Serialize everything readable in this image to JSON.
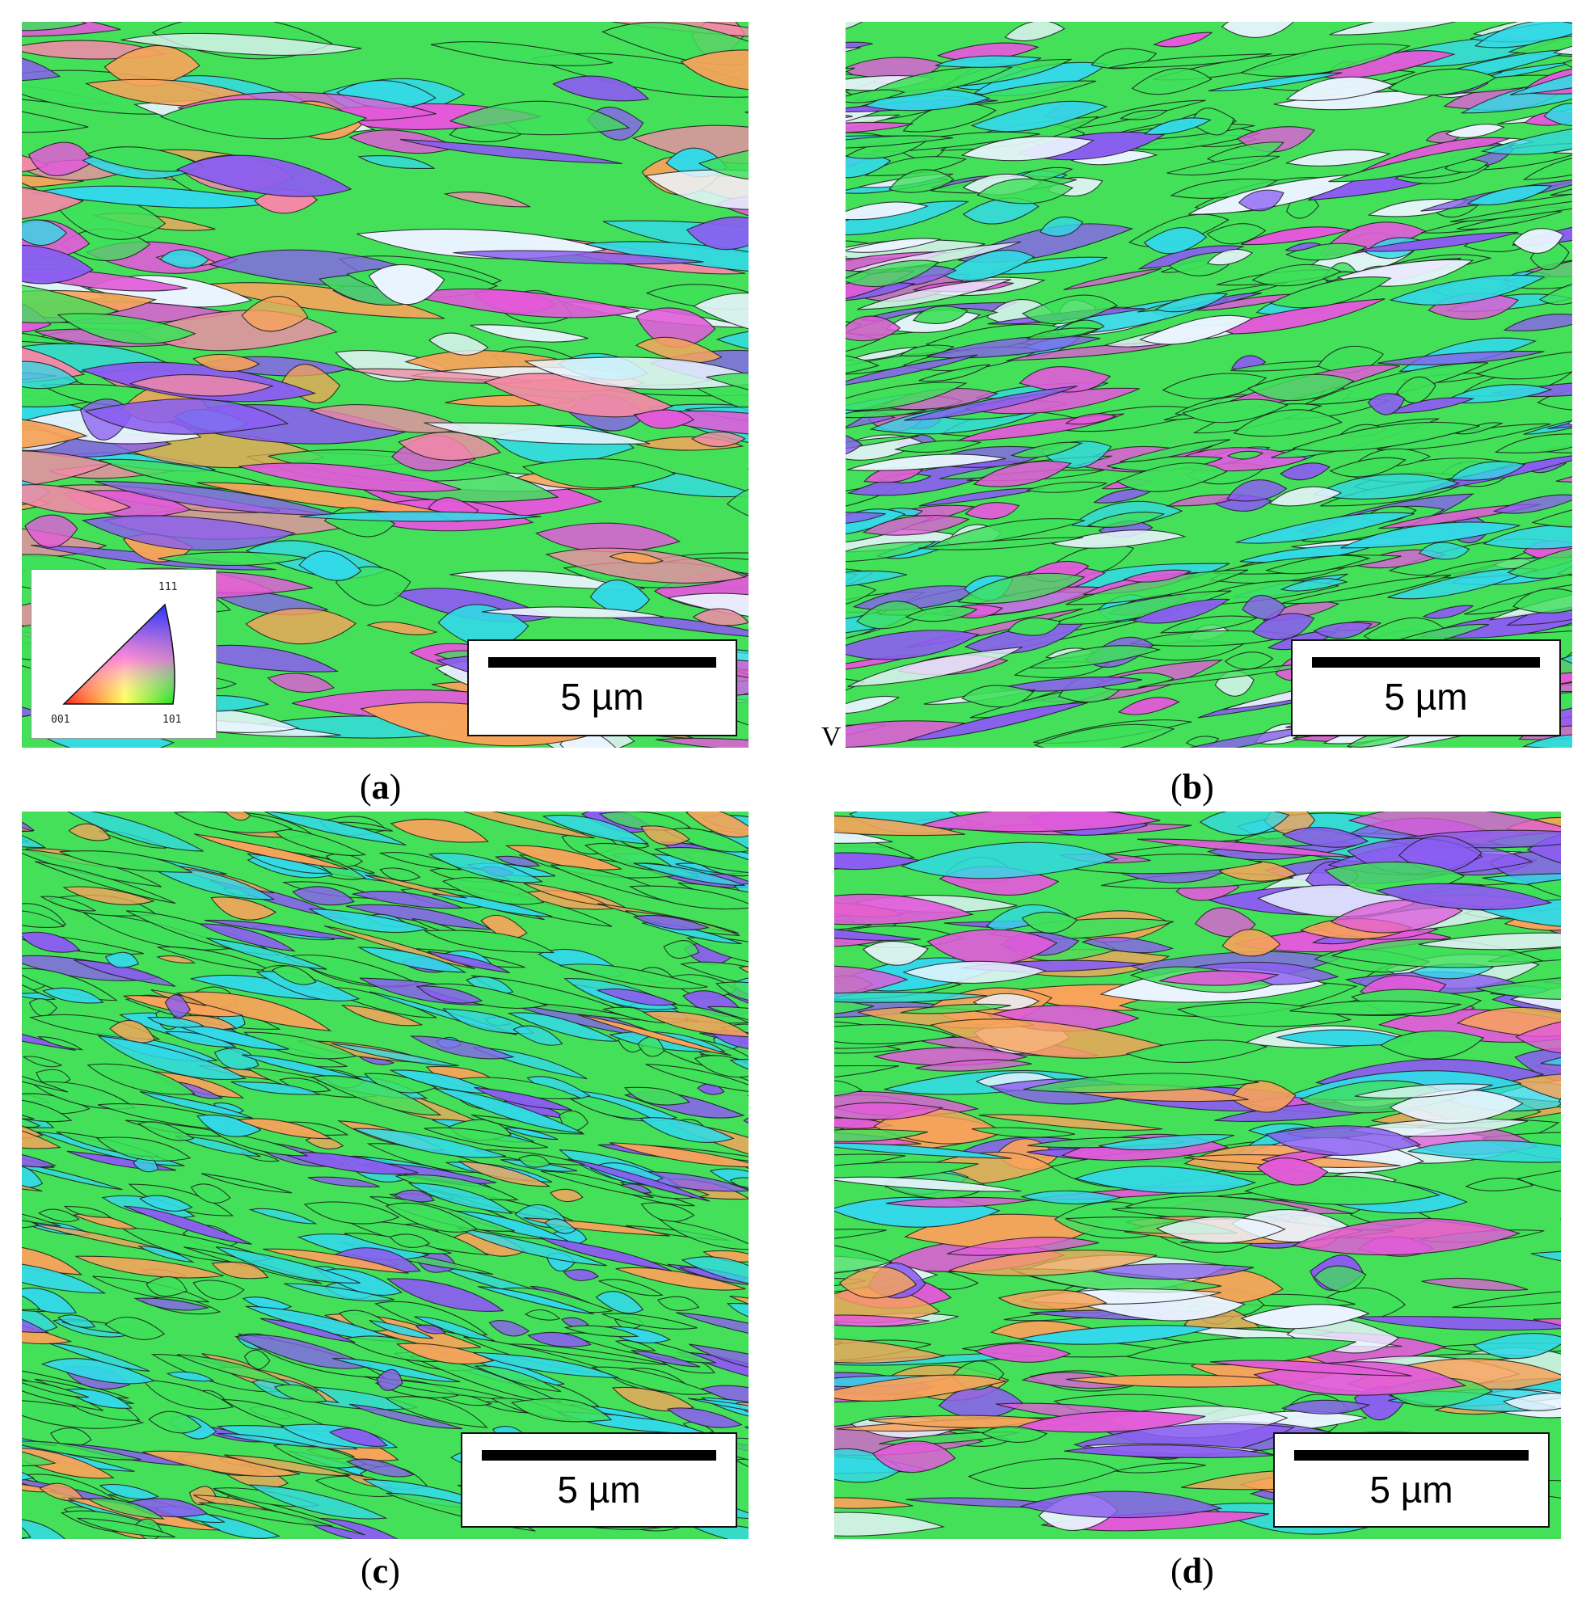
{
  "panels": [
    {
      "id": "a",
      "caption": "a",
      "scale_label": "5 µm"
    },
    {
      "id": "b",
      "caption": "b",
      "scale_label": "5 µm"
    },
    {
      "id": "c",
      "caption": "c",
      "scale_label": "5 µm"
    },
    {
      "id": "d",
      "caption": "d",
      "scale_label": "5 µm"
    }
  ],
  "legend": {
    "corner_001": "001",
    "corner_101": "101",
    "corner_111": "111"
  },
  "stray_mark": "V",
  "colors": {
    "green": "#3fe05a",
    "cyan": "#33d9e6",
    "magenta": "#e25ad9",
    "violet": "#8a5ef0",
    "orange": "#f7a35a",
    "pink": "#f28aa6",
    "white": "#eaf4ff",
    "boundary": "#1b1b1b"
  }
}
